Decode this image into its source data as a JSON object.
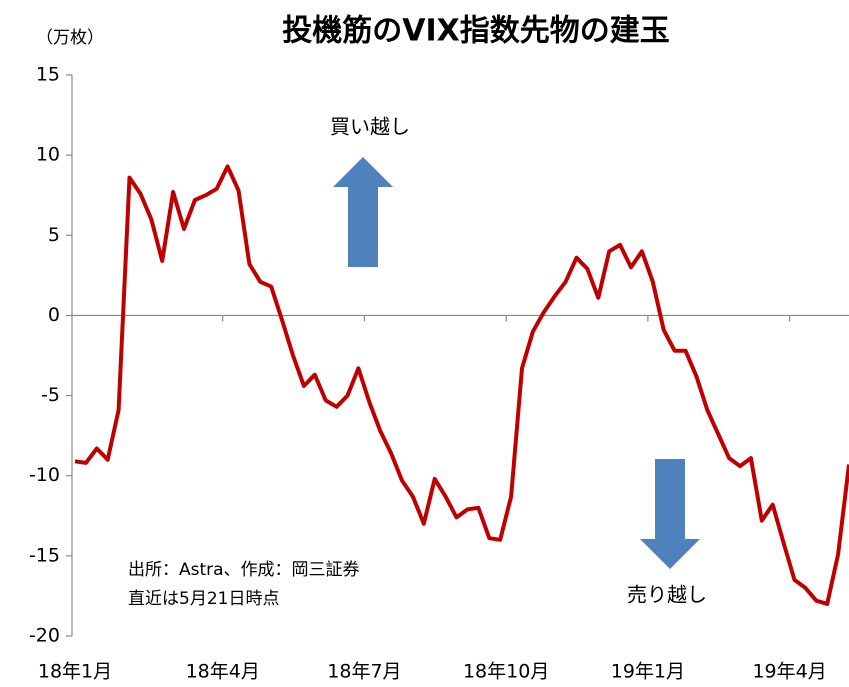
{
  "chart_data": {
    "type": "line",
    "title": "投機筋のVIX指数先物の建玉",
    "y_label": "（万枚）",
    "annotations": [
      "買い越し",
      "売り越し"
    ],
    "notes": [
      "出所：Astra、作成：岡三証券",
      "直近は5月21日時点"
    ],
    "categories": [
      "18年1月",
      null,
      null,
      null,
      null,
      null,
      null,
      null,
      null,
      null,
      null,
      null,
      null,
      "18年4月",
      null,
      null,
      null,
      null,
      null,
      null,
      null,
      null,
      null,
      null,
      null,
      null,
      "18年7月",
      null,
      null,
      null,
      null,
      null,
      null,
      null,
      null,
      null,
      null,
      null,
      null,
      "18年10月",
      null,
      null,
      null,
      null,
      null,
      null,
      null,
      null,
      null,
      null,
      null,
      null,
      "19年1月",
      null,
      null,
      null,
      null,
      null,
      null,
      null,
      null,
      null,
      null,
      null,
      null,
      "19年4月",
      null,
      null,
      null,
      null,
      null,
      null
    ],
    "series": [
      {
        "name": "建玉",
        "color": "#c00000",
        "values": [
          -9.1,
          -9.2,
          -8.3,
          -9.0,
          -5.9,
          8.6,
          7.6,
          6.0,
          3.4,
          7.7,
          5.4,
          7.2,
          7.5,
          7.9,
          9.3,
          7.8,
          3.2,
          2.1,
          1.8,
          -0.3,
          -2.5,
          -4.4,
          -3.7,
          -5.3,
          -5.7,
          -5.0,
          -3.3,
          -5.4,
          -7.2,
          -8.6,
          -10.3,
          -11.3,
          -13.0,
          -10.2,
          -11.3,
          -12.6,
          -12.1,
          -12.0,
          -13.9,
          -14.0,
          -11.3,
          -3.3,
          -1.0,
          0.2,
          1.2,
          2.1,
          3.6,
          2.9,
          1.1,
          4.0,
          4.4,
          3.0,
          4.0,
          2.1,
          -0.9,
          -2.2,
          -2.2,
          -3.8,
          -5.9,
          -7.4,
          -8.9,
          -9.4,
          -8.9,
          -12.8,
          -11.8,
          -14.2,
          -16.5,
          -17.0,
          -17.8,
          -18.0,
          -14.9,
          -9.3
        ]
      }
    ],
    "ylim": [
      -20,
      15
    ],
    "yticks": [
      -20,
      -15,
      -10,
      -5,
      0,
      5,
      10,
      15
    ]
  }
}
